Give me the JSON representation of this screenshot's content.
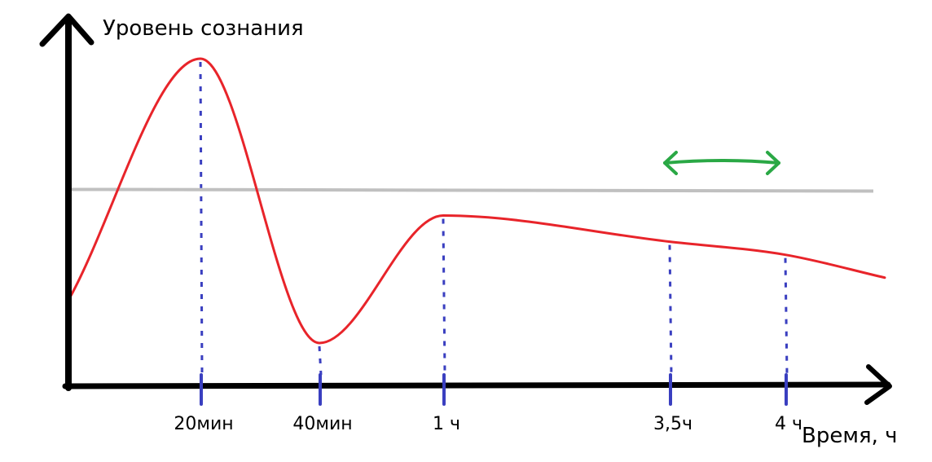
{
  "chart_data": {
    "type": "line",
    "ylabel": "Уровень сознания",
    "xlabel": "Время, ч",
    "x_ticks": [
      {
        "label": "20мин",
        "x": 0.333
      },
      {
        "label": "40мин",
        "x": 0.667
      },
      {
        "label": "1 ч",
        "x": 1.0
      },
      {
        "label": "3,5ч",
        "x": 3.5
      },
      {
        "label": "4 ч",
        "x": 4.0
      }
    ],
    "series": [
      {
        "color": "#e8242a",
        "x": [
          0.0,
          0.333,
          0.667,
          1.0,
          3.5,
          4.0,
          4.5
        ],
        "y": [
          0.27,
          1.0,
          0.13,
          0.52,
          0.44,
          0.4,
          0.33
        ]
      }
    ],
    "threshold": {
      "y": 0.6,
      "color": "#c0c0c0"
    },
    "range_arrow": {
      "x_start": 3.5,
      "x_end": 4.0,
      "color": "#2aa845"
    },
    "guide_color": "#3a3fc0",
    "axis_color": "#000000"
  }
}
